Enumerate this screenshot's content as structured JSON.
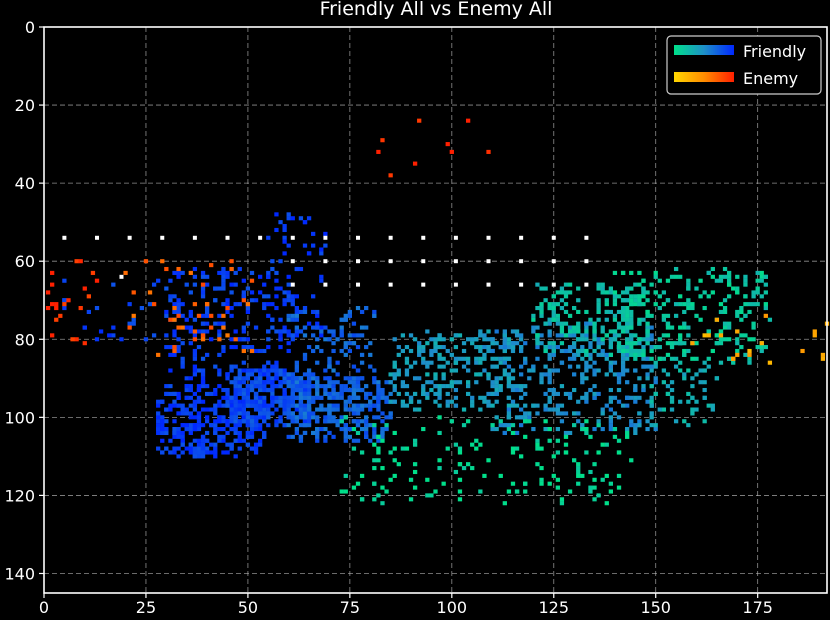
{
  "chart_data": {
    "type": "heatmap",
    "title": "Friendly All vs Enemy All",
    "xlabel": "",
    "ylabel": "",
    "xlim": [
      0,
      192
    ],
    "ylim": [
      145,
      0
    ],
    "y_inverted": true,
    "x_ticks": [
      "0",
      "25",
      "50",
      "75",
      "100",
      "125",
      "150",
      "175"
    ],
    "y_ticks": [
      "0",
      "20",
      "40",
      "60",
      "80",
      "100",
      "120",
      "140"
    ],
    "grid": true,
    "grid_style": "dashed",
    "legend_position": "top-right",
    "background": "#000000",
    "series": [
      {
        "name": "Friendly",
        "colormap": [
          "#00e08a",
          "#1e90c8",
          "#0028ff"
        ],
        "regions": [
          {
            "x_range": [
              28,
              54
            ],
            "y_range": [
              92,
              110
            ],
            "intensity": 0.92,
            "count": 320
          },
          {
            "x_range": [
              45,
              65
            ],
            "y_range": [
              88,
              102
            ],
            "intensity": 0.85,
            "count": 300
          },
          {
            "x_range": [
              60,
              85
            ],
            "y_range": [
              90,
              106
            ],
            "intensity": 0.72,
            "count": 280
          },
          {
            "x_range": [
              30,
              62
            ],
            "y_range": [
              62,
              92
            ],
            "intensity": 0.9,
            "count": 240
          },
          {
            "x_range": [
              55,
              70
            ],
            "y_range": [
              48,
              80
            ],
            "intensity": 0.9,
            "count": 70
          },
          {
            "x_range": [
              60,
              82
            ],
            "y_range": [
              72,
              96
            ],
            "intensity": 0.72,
            "count": 140
          },
          {
            "x_range": [
              85,
              115
            ],
            "y_range": [
              78,
              98
            ],
            "intensity": 0.42,
            "count": 240
          },
          {
            "x_range": [
              110,
              150
            ],
            "y_range": [
              76,
              104
            ],
            "intensity": 0.5,
            "count": 360
          },
          {
            "x_range": [
              120,
              148
            ],
            "y_range": [
              66,
              84
            ],
            "intensity": 0.22,
            "count": 200
          },
          {
            "x_range": [
              140,
              178
            ],
            "y_range": [
              62,
              86
            ],
            "intensity": 0.15,
            "count": 240
          },
          {
            "x_range": [
              148,
              165
            ],
            "y_range": [
              86,
              102
            ],
            "intensity": 0.3,
            "count": 60
          },
          {
            "x_range": [
              72,
              145
            ],
            "y_range": [
              100,
              122
            ],
            "intensity": 0.04,
            "count": 170
          },
          {
            "x_range": [
              5,
              28
            ],
            "y_range": [
              64,
              80
            ],
            "intensity": 0.9,
            "count": 25
          }
        ]
      },
      {
        "name": "Enemy",
        "colormap": [
          "#ffd700",
          "#ff8c00",
          "#ff2000"
        ],
        "regions": [
          {
            "x_range": [
              1,
              14
            ],
            "y_range": [
              58,
              82
            ],
            "intensity": 0.95,
            "count": 22
          },
          {
            "x_range": [
              18,
              52
            ],
            "y_range": [
              60,
              84
            ],
            "intensity": 0.7,
            "count": 45
          },
          {
            "x_range": [
              82,
              112
            ],
            "y_range": [
              22,
              39
            ],
            "intensity": 1.0,
            "count": 9
          },
          {
            "x_range": [
              158,
              192
            ],
            "y_range": [
              74,
              86
            ],
            "intensity": 0.3,
            "count": 20
          }
        ]
      }
    ],
    "markers": {
      "color": "#ffffff",
      "rows_y": [
        54,
        60,
        66
      ],
      "x": [
        5,
        13,
        21,
        29,
        37,
        45,
        53,
        61,
        69,
        77,
        85,
        93,
        101,
        109,
        117,
        125,
        133
      ]
    }
  }
}
